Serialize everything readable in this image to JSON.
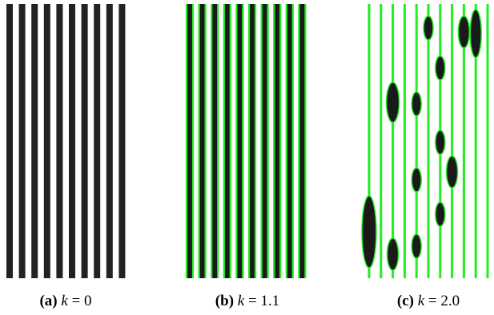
{
  "panels": [
    {
      "label": "(a)",
      "symbol": "k",
      "rhs": "= 0"
    },
    {
      "label": "(b)",
      "symbol": "k",
      "rhs": "= 1.1"
    },
    {
      "label": "(c)",
      "symbol": "k",
      "rhs": "= 2.0"
    }
  ]
}
